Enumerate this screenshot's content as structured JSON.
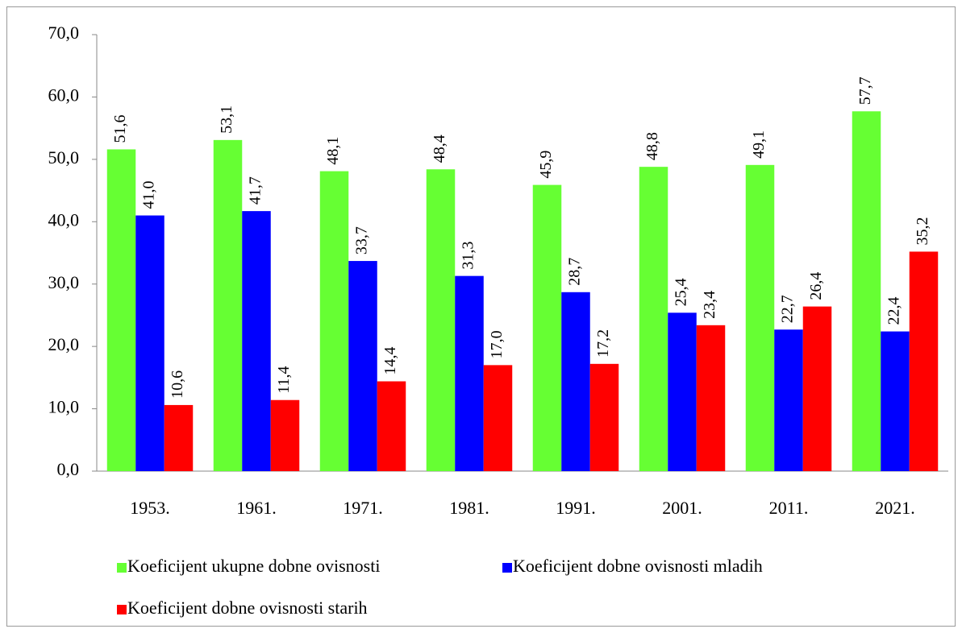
{
  "chart_data": {
    "type": "bar",
    "categories": [
      "1953.",
      "1961.",
      "1971.",
      "1981.",
      "1991.",
      "2001.",
      "2011.",
      "2021."
    ],
    "series": [
      {
        "name": "Koeficijent ukupne dobne ovisnosti",
        "color": "#66ff33",
        "values": [
          51.6,
          53.1,
          48.1,
          48.4,
          45.9,
          48.8,
          49.1,
          57.7
        ],
        "value_labels": [
          "51,6",
          "53,1",
          "48,1",
          "48,4",
          "45,9",
          "48,8",
          "49,1",
          "57,7"
        ]
      },
      {
        "name": "Koeficijent dobne ovisnosti mladih",
        "color": "#0000ff",
        "values": [
          41.0,
          41.7,
          33.7,
          31.3,
          28.7,
          25.4,
          22.7,
          22.4
        ],
        "value_labels": [
          "41,0",
          "41,7",
          "33,7",
          "31,3",
          "28,7",
          "25,4",
          "22,7",
          "22,4"
        ]
      },
      {
        "name": "Koeficijent dobne ovisnosti starih",
        "color": "#ff0000",
        "values": [
          10.6,
          11.4,
          14.4,
          17.0,
          17.2,
          23.4,
          26.4,
          35.2
        ],
        "value_labels": [
          "10,6",
          "11,4",
          "14,4",
          "17,0",
          "17,2",
          "23,4",
          "26,4",
          "35,2"
        ]
      }
    ],
    "ylim": [
      0,
      70
    ],
    "yticks": [
      {
        "value": 0,
        "label": "0,0"
      },
      {
        "value": 10,
        "label": "10,0"
      },
      {
        "value": 20,
        "label": "20,0"
      },
      {
        "value": 30,
        "label": "30,0"
      },
      {
        "value": 40,
        "label": "40,0"
      },
      {
        "value": 50,
        "label": "50,0"
      },
      {
        "value": 60,
        "label": "60,0"
      },
      {
        "value": 70,
        "label": "70,0"
      }
    ],
    "grid": false,
    "legend": "bottom"
  }
}
